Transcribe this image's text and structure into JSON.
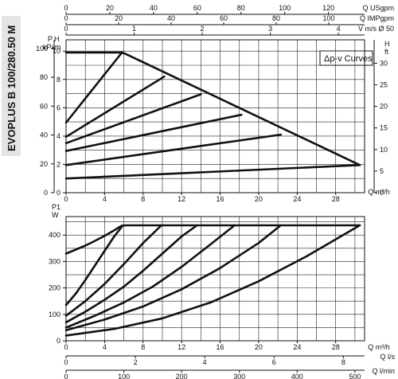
{
  "product_label": "EVOPLUS B 100/280.50 M",
  "chart_data": [
    {
      "type": "line",
      "legend": "Δp-v Curves",
      "yaxis_left_title": "H",
      "yaxis_left_unit": "m",
      "yaxis_left2_title": "P",
      "yaxis_left2_unit": "kPa",
      "yaxis_right_title": "H",
      "yaxis_right_unit": "ft",
      "x_label": "Q m³/h",
      "xlim": [
        0,
        31
      ],
      "ylim": [
        0,
        10.8
      ],
      "x_ticks": [
        "0",
        "4",
        "8",
        "12",
        "16",
        "20",
        "24",
        "28"
      ],
      "y_m_ticks": [
        "0",
        "2",
        "4",
        "6",
        "8",
        "10"
      ],
      "y_kpa_ticks": [
        "0",
        "20",
        "40",
        "60",
        "80",
        "100"
      ],
      "y_ft_ticks": [
        "0",
        "5",
        "10",
        "15",
        "20",
        "25",
        "30"
      ],
      "top_axes": [
        {
          "label": "Q USgpm",
          "ticks": [
            "0",
            "20",
            "40",
            "60",
            "80",
            "100",
            "120"
          ]
        },
        {
          "label": "Q IMPgpm",
          "ticks": [
            "0",
            "20",
            "40",
            "60",
            "80",
            "100"
          ]
        },
        {
          "label": "V m/s Ø 50",
          "ticks": [
            "0",
            "1",
            "2",
            "3",
            "4"
          ]
        }
      ],
      "series": [
        {
          "x": [
            0,
            5.8,
            6.2,
            30.5
          ],
          "y": [
            9.9,
            9.9,
            9.8,
            1.95
          ]
        },
        {
          "x": [
            0,
            30.5
          ],
          "y": [
            1.0,
            1.95
          ]
        },
        {
          "x": [
            0,
            22.3
          ],
          "y": [
            1.95,
            4.1
          ]
        },
        {
          "x": [
            0,
            18.2
          ],
          "y": [
            2.95,
            5.5
          ]
        },
        {
          "x": [
            0,
            14.0
          ],
          "y": [
            3.5,
            6.95
          ]
        },
        {
          "x": [
            0,
            10.2
          ],
          "y": [
            3.95,
            8.2
          ]
        },
        {
          "x": [
            0,
            5.8
          ],
          "y": [
            4.95,
            9.9
          ]
        }
      ]
    },
    {
      "type": "line",
      "yaxis_title": "P1",
      "yaxis_unit": "W",
      "x_label": "Q m³/h",
      "xlim": [
        0,
        31
      ],
      "ylim": [
        0,
        470
      ],
      "x_ticks": [
        "0",
        "4",
        "8",
        "12",
        "16",
        "20",
        "24",
        "28"
      ],
      "y_ticks": [
        "0",
        "100",
        "200",
        "300",
        "400"
      ],
      "bottom_axes": [
        {
          "label": "Q l/s",
          "ticks": [
            "0",
            "2",
            "4",
            "6",
            "8"
          ]
        },
        {
          "label": "Q l/min",
          "ticks": [
            "0",
            "100",
            "200",
            "300",
            "400",
            "500"
          ]
        }
      ],
      "series": [
        {
          "x": [
            0,
            1,
            2,
            3,
            4,
            5,
            5.7,
            6.2,
            30.5
          ],
          "y": [
            330,
            345,
            360,
            378,
            397,
            418,
            434,
            437,
            437
          ]
        },
        {
          "x": [
            0,
            1,
            2,
            3,
            4,
            5,
            5.9
          ],
          "y": [
            135,
            178,
            230,
            285,
            340,
            395,
            437
          ]
        },
        {
          "x": [
            0,
            2,
            4,
            6,
            8,
            9.9
          ],
          "y": [
            95,
            150,
            215,
            290,
            370,
            437
          ]
        },
        {
          "x": [
            0,
            2,
            4,
            6,
            8,
            10,
            12,
            13.6
          ],
          "y": [
            70,
            110,
            155,
            205,
            265,
            330,
            395,
            437
          ]
        },
        {
          "x": [
            0,
            3,
            6,
            9,
            12,
            15,
            17.5
          ],
          "y": [
            50,
            95,
            145,
            205,
            280,
            365,
            437
          ]
        },
        {
          "x": [
            0,
            4,
            8,
            12,
            16,
            20,
            22.3
          ],
          "y": [
            40,
            80,
            130,
            195,
            275,
            370,
            437
          ]
        },
        {
          "x": [
            0,
            5,
            10,
            15,
            20,
            25,
            30.5
          ],
          "y": [
            20,
            45,
            85,
            145,
            225,
            320,
            437
          ]
        }
      ]
    }
  ]
}
